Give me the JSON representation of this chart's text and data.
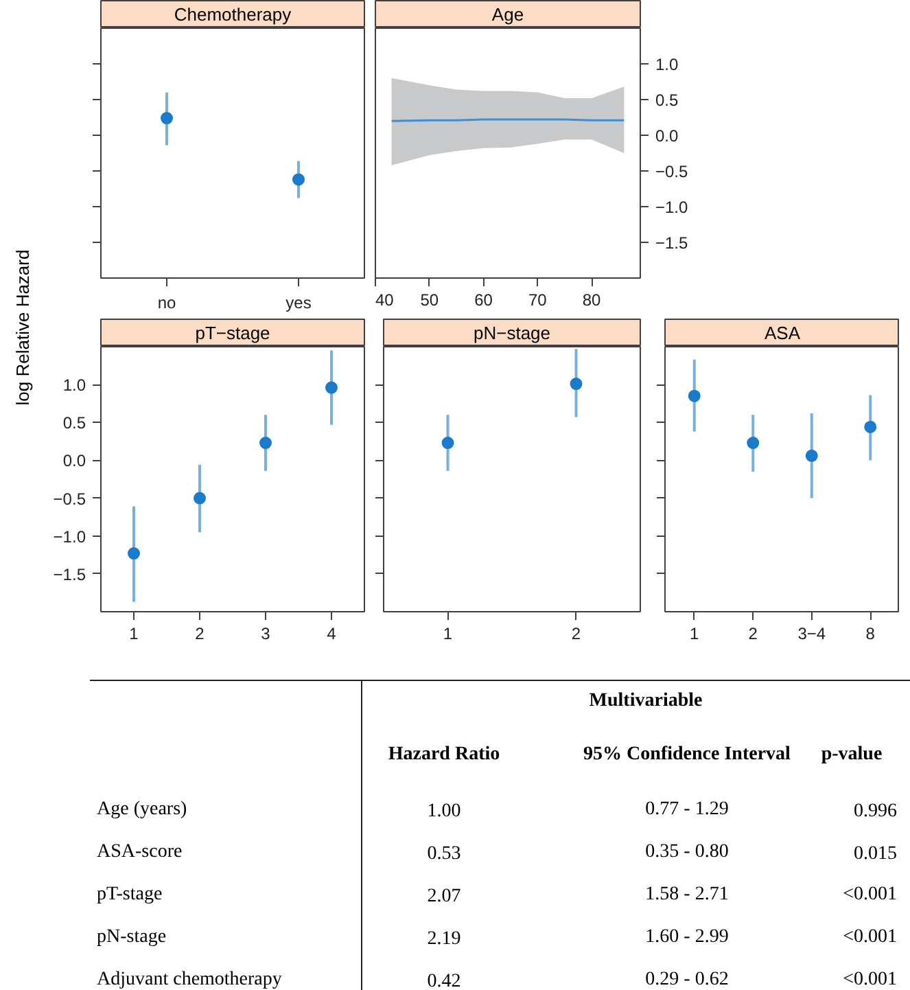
{
  "chart_data": [
    {
      "type": "scatter",
      "title": "Chemotherapy",
      "ylabel": "log Relative Hazard",
      "categories": [
        "no",
        "yes"
      ],
      "marker": "circle",
      "tick_labels": "x",
      "ylim": [
        -2.0,
        1.5
      ],
      "yticks": [
        {
          "value": -1.5,
          "label": null
        },
        {
          "value": -1,
          "label": null
        },
        {
          "value": -0.5,
          "label": null
        },
        {
          "value": 0,
          "label": null
        },
        {
          "value": 0.5,
          "label": null
        },
        {
          "value": 1,
          "label": null
        }
      ],
      "series": [
        {
          "color": "#1a7acb",
          "values": [
            0.24,
            -0.62
          ],
          "errors": [
            [
              -0.14,
              0.6
            ],
            [
              -0.88,
              -0.36
            ]
          ]
        }
      ]
    },
    {
      "type": "line",
      "title": "Age",
      "xlim": [
        40,
        89
      ],
      "xticks": [
        40,
        50,
        60,
        70,
        80
      ],
      "ylim": [
        -2.0,
        1.5
      ],
      "yticks": [
        {
          "value": -1.5,
          "label": "−1.5"
        },
        {
          "value": -1,
          "label": "−1.0"
        },
        {
          "value": -0.5,
          "label": "−0.5"
        },
        {
          "value": 0,
          "label": "0.0"
        },
        {
          "value": 0.5,
          "label": "0.5"
        },
        {
          "value": 1,
          "label": "1.0"
        }
      ],
      "series": [
        {
          "color": "#3a8fd6",
          "x": [
            43,
            50,
            55,
            60,
            65,
            70,
            75,
            80,
            86
          ],
          "values": [
            0.2,
            0.21,
            0.21,
            0.22,
            0.22,
            0.22,
            0.22,
            0.21,
            0.21
          ],
          "lower": [
            -0.42,
            -0.28,
            -0.22,
            -0.18,
            -0.17,
            -0.12,
            -0.06,
            -0.06,
            -0.25
          ],
          "upper": [
            0.8,
            0.7,
            0.64,
            0.62,
            0.62,
            0.6,
            0.52,
            0.52,
            0.68
          ]
        }
      ]
    },
    {
      "type": "scatter",
      "title": "pT−stage",
      "categories": [
        "1",
        "2",
        "3",
        "4"
      ],
      "marker": "circle",
      "ylim": [
        -2.0,
        1.5
      ],
      "yticks": [
        {
          "value": -1.5,
          "label": "−1.5"
        },
        {
          "value": -1,
          "label": "−1.0"
        },
        {
          "value": -0.5,
          "label": "−0.5"
        },
        {
          "value": 0,
          "label": "0.0"
        },
        {
          "value": 0.5,
          "label": "0.5"
        },
        {
          "value": 1,
          "label": "1.0"
        }
      ],
      "series": [
        {
          "color": "#1a7acb",
          "values": [
            -1.23,
            -0.5,
            0.23,
            0.96
          ],
          "errors": [
            [
              -1.87,
              -0.61
            ],
            [
              -0.95,
              -0.06
            ],
            [
              -0.14,
              0.6
            ],
            [
              0.47,
              1.45
            ]
          ]
        }
      ]
    },
    {
      "type": "scatter",
      "title": "pN−stage",
      "categories": [
        "1",
        "2"
      ],
      "marker": "circle",
      "tick_labels": "x",
      "ylim": [
        -2.0,
        1.5
      ],
      "yticks": [
        {
          "value": -1.5,
          "label": null
        },
        {
          "value": -1,
          "label": null
        },
        {
          "value": -0.5,
          "label": null
        },
        {
          "value": 0,
          "label": null
        },
        {
          "value": 0.5,
          "label": null
        },
        {
          "value": 1,
          "label": null
        }
      ],
      "series": [
        {
          "color": "#1a7acb",
          "values": [
            0.23,
            1.01
          ],
          "errors": [
            [
              -0.14,
              0.6
            ],
            [
              0.57,
              1.47
            ]
          ]
        }
      ]
    },
    {
      "type": "scatter",
      "title": "ASA",
      "categories": [
        "1",
        "2",
        "3−4",
        "8"
      ],
      "marker": "circle",
      "tick_labels": "x",
      "ylim": [
        -2.0,
        1.5
      ],
      "yticks": [
        {
          "value": -1.5,
          "label": null
        },
        {
          "value": -1,
          "label": null
        },
        {
          "value": -0.5,
          "label": null
        },
        {
          "value": 0,
          "label": null
        },
        {
          "value": 0.5,
          "label": null
        },
        {
          "value": 1,
          "label": null
        }
      ],
      "series": [
        {
          "color": "#1a7acb",
          "values": [
            0.85,
            0.23,
            0.06,
            0.44
          ],
          "errors": [
            [
              0.38,
              1.33
            ],
            [
              -0.15,
              0.6
            ],
            [
              -0.5,
              0.62
            ],
            [
              0.0,
              0.86
            ]
          ]
        }
      ]
    },
    {
      "type": "other",
      "title": "Multivariable",
      "annotations": [
        "Hazard Ratio",
        "95% Confidence Interval",
        "p-value",
        "Age (years)",
        "1.00",
        "0.77 - 1.29",
        "0.996",
        "ASA-score",
        "0.53",
        "0.35 - 0.80",
        "0.015",
        "pT-stage",
        "2.07",
        "1.58 - 2.71",
        "<0.001",
        "pN-stage",
        "2.19",
        "1.60 - 2.99",
        "<0.001",
        "Adjuvant chemotherapy",
        "0.42",
        "0.29 - 0.62",
        "<0.001"
      ]
    }
  ]
}
